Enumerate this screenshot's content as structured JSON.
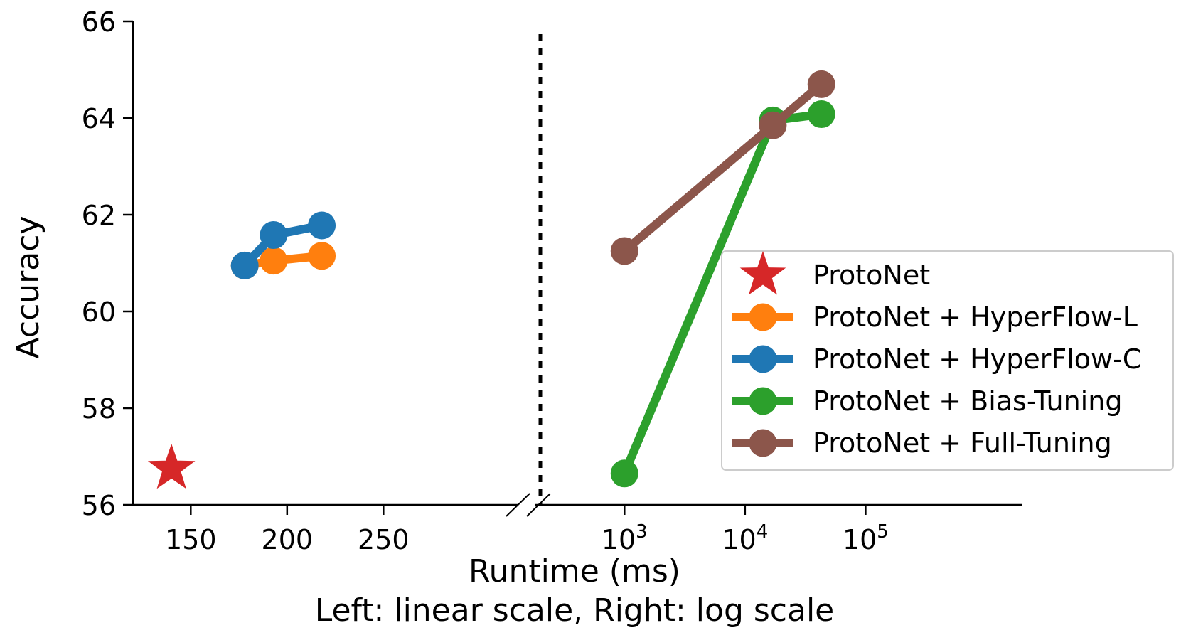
{
  "chart_data": {
    "type": "line",
    "xlabel": "Runtime (ms)",
    "xlabel_sub": "Left: linear scale, Right: log scale",
    "ylabel": "Accuracy",
    "ylim": [
      56,
      66
    ],
    "y_ticks": [
      56,
      58,
      60,
      62,
      64,
      66
    ],
    "y_tick_labels": [
      "56",
      "58",
      "60",
      "62",
      "64",
      "66"
    ],
    "left_axis": {
      "scale": "linear",
      "xlim": [
        120,
        320
      ],
      "ticks": [
        150,
        200,
        250
      ],
      "tick_labels": [
        "150",
        "200",
        "250"
      ]
    },
    "right_axis": {
      "scale": "log",
      "xlim": [
        180,
        2000000
      ],
      "ticks": [
        1000,
        10000,
        100000
      ],
      "tick_labels": [
        {
          "base": "10",
          "exp": "3"
        },
        {
          "base": "10",
          "exp": "4"
        },
        {
          "base": "10",
          "exp": "5"
        }
      ]
    },
    "legend_position": "center-right",
    "series": [
      {
        "name": "ProtoNet",
        "color": "#d62728",
        "marker": "star",
        "panel": "left",
        "x": [
          140
        ],
        "y": [
          56.75
        ]
      },
      {
        "name": "ProtoNet + HyperFlow-L",
        "color": "#ff7f0e",
        "marker": "circle",
        "panel": "left",
        "x": [
          178,
          193,
          218
        ],
        "y": [
          60.95,
          61.05,
          61.15
        ]
      },
      {
        "name": "ProtoNet + HyperFlow-C",
        "color": "#1f77b4",
        "marker": "circle",
        "panel": "left",
        "x": [
          178,
          193,
          218
        ],
        "y": [
          60.95,
          61.58,
          61.78
        ]
      },
      {
        "name": "ProtoNet + Bias-Tuning",
        "color": "#2ca02c",
        "marker": "circle",
        "panel": "right",
        "x": [
          1000,
          17000,
          43000
        ],
        "y": [
          56.65,
          63.95,
          64.08
        ]
      },
      {
        "name": "ProtoNet + Full-Tuning",
        "color": "#8c564b",
        "marker": "circle",
        "panel": "right",
        "x": [
          1000,
          17000,
          43000
        ],
        "y": [
          61.25,
          63.85,
          64.7
        ]
      }
    ]
  }
}
